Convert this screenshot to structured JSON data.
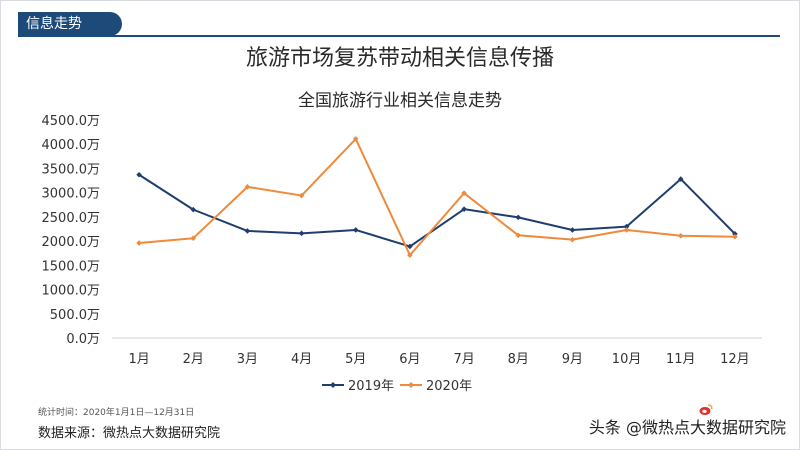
{
  "header": {
    "tag": "信息走势",
    "title": "旅游市场复苏带动相关信息传播"
  },
  "chart_data": {
    "type": "line",
    "title": "全国旅游行业相关信息走势",
    "categories": [
      "1月",
      "2月",
      "3月",
      "4月",
      "5月",
      "6月",
      "7月",
      "8月",
      "9月",
      "10月",
      "11月",
      "12月"
    ],
    "yticks": [
      "0.0万",
      "500.0万",
      "1000.0万",
      "1500.0万",
      "2000.0万",
      "2500.0万",
      "3000.0万",
      "3500.0万",
      "4000.0万",
      "4500.0万"
    ],
    "ylim": [
      0,
      4500
    ],
    "series": [
      {
        "name": "2019年",
        "color": "#1f3e6e",
        "values": [
          3370,
          2650,
          2210,
          2160,
          2230,
          1890,
          2660,
          2490,
          2230,
          2300,
          3280,
          2150
        ]
      },
      {
        "name": "2020年",
        "color": "#ee8a3c",
        "values": [
          1960,
          2060,
          3120,
          2940,
          4110,
          1710,
          2990,
          2120,
          2030,
          2230,
          2110,
          2090
        ]
      }
    ]
  },
  "footer": {
    "period": "统计时间：2020年1月1日—12月31日",
    "source": "数据来源：微热点大数据研究院",
    "watermark": "头条 @微热点大数据研究院"
  }
}
